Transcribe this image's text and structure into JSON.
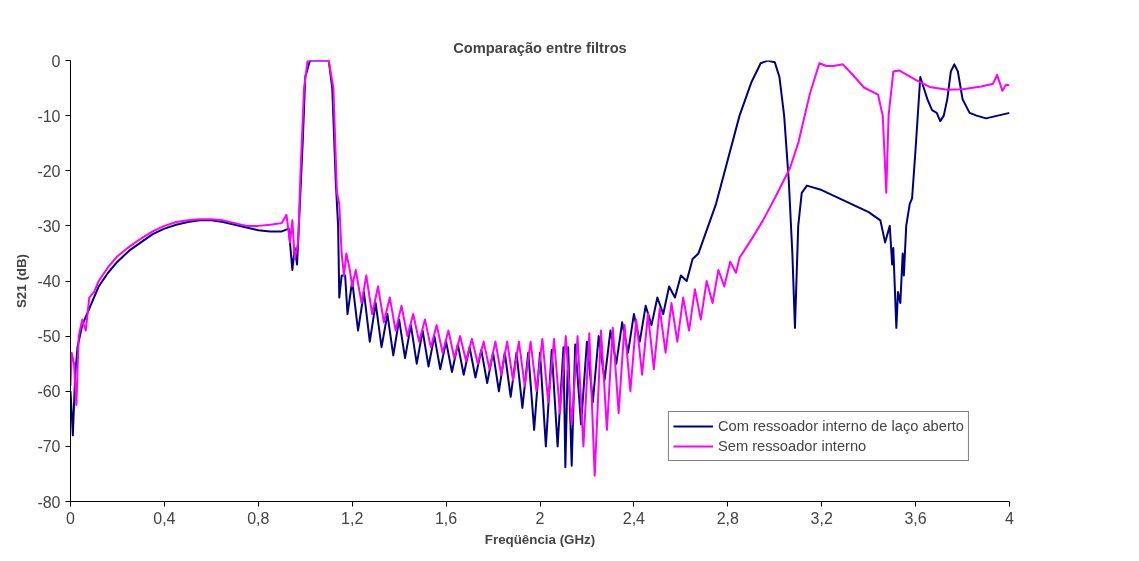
{
  "chart_data": {
    "type": "line",
    "title": "Comparação entre filtros",
    "xlabel": "Freqüência (GHz)",
    "ylabel": "S21 (dB)",
    "xlim": [
      0,
      4
    ],
    "ylim": [
      -80,
      0
    ],
    "xticks": [
      0,
      {
        "value": 0.4,
        "label": "0,4"
      },
      {
        "value": 0.8,
        "label": "0,8"
      },
      {
        "value": 1.2,
        "label": "1,2"
      },
      {
        "value": 1.6,
        "label": "1,6"
      },
      2,
      {
        "value": 2.4,
        "label": "2,4"
      },
      {
        "value": 2.8,
        "label": "2,8"
      },
      {
        "value": 3.2,
        "label": "3,2"
      },
      {
        "value": 3.6,
        "label": "3,6"
      },
      4
    ],
    "yticks": [
      -80,
      -70,
      -60,
      -50,
      -40,
      -30,
      -20,
      -10,
      0
    ],
    "grid": false,
    "legend": "bottom right",
    "marker": "none",
    "line_style": "solid",
    "series": [
      {
        "name": "Com ressoador interno de laço aberto",
        "color": "#000080",
        "x": [
          0,
          0.01,
          0.02,
          0.03,
          0.05,
          0.08,
          0.12,
          0.16,
          0.2,
          0.25,
          0.3,
          0.35,
          0.4,
          0.45,
          0.5,
          0.55,
          0.6,
          0.65,
          0.7,
          0.75,
          0.8,
          0.85,
          0.9,
          0.93,
          0.945,
          0.955,
          0.965,
          0.975,
          0.99,
          1.0,
          1.02,
          1.05,
          1.1,
          1.115,
          1.13,
          1.14,
          1.145,
          1.155,
          1.17,
          1.18,
          1.2,
          1.225,
          1.25,
          1.275,
          1.3,
          1.325,
          1.35,
          1.375,
          1.4,
          1.425,
          1.45,
          1.475,
          1.5,
          1.525,
          1.55,
          1.575,
          1.6,
          1.625,
          1.65,
          1.675,
          1.7,
          1.725,
          1.75,
          1.775,
          1.8,
          1.825,
          1.85,
          1.875,
          1.9,
          1.925,
          1.95,
          1.975,
          2.0,
          2.025,
          2.05,
          2.075,
          2.1,
          2.108,
          2.12,
          2.135,
          2.15,
          2.175,
          2.2,
          2.225,
          2.25,
          2.275,
          2.3,
          2.325,
          2.35,
          2.375,
          2.4,
          2.425,
          2.45,
          2.475,
          2.5,
          2.525,
          2.55,
          2.575,
          2.6,
          2.625,
          2.65,
          2.675,
          2.7,
          2.75,
          2.8,
          2.85,
          2.9,
          2.94,
          2.97,
          3.0,
          3.02,
          3.04,
          3.06,
          3.075,
          3.086,
          3.1,
          3.115,
          3.137,
          3.2,
          3.25,
          3.3,
          3.35,
          3.4,
          3.45,
          3.47,
          3.49,
          3.5,
          3.505,
          3.518,
          3.525,
          3.535,
          3.545,
          3.55,
          3.56,
          3.575,
          3.585,
          3.6,
          3.62,
          3.635,
          3.65,
          3.67,
          3.69,
          3.705,
          3.72,
          3.735,
          3.75,
          3.765,
          3.78,
          3.8,
          3.83,
          3.86,
          3.9,
          3.95,
          4.0
        ],
        "values": [
          -60,
          -68,
          -57,
          -52,
          -48,
          -45,
          -41,
          -38.5,
          -36.5,
          -34.5,
          -33,
          -31.5,
          -30.5,
          -29.8,
          -29.3,
          -29,
          -29,
          -29.3,
          -29.8,
          -30.3,
          -30.8,
          -31,
          -31,
          -30.5,
          -38,
          -34,
          -37,
          -28,
          -14,
          -3,
          0,
          0,
          0,
          -5,
          -22,
          -30,
          -43,
          -39,
          -39,
          -46,
          -40,
          -49,
          -42,
          -51,
          -44,
          -52,
          -46,
          -53.5,
          -47,
          -54,
          -48,
          -55,
          -49,
          -55.5,
          -50,
          -56,
          -51,
          -56.5,
          -51.5,
          -57,
          -52,
          -57.5,
          -52.5,
          -58.5,
          -53,
          -60,
          -53,
          -61,
          -53,
          -63,
          -53,
          -67,
          -53,
          -70,
          -52.5,
          -70,
          -52,
          -73.8,
          -52,
          -73.5,
          -51.5,
          -66,
          -51,
          -62,
          -50,
          -58,
          -49,
          -55,
          -47.5,
          -53,
          -46,
          -51,
          -44.5,
          -48,
          -43,
          -46,
          -41,
          -43,
          -39,
          -40,
          -36,
          -35,
          -32,
          -26,
          -18,
          -10,
          -4,
          -0.5,
          0,
          -0.3,
          -3,
          -10,
          -22,
          -35,
          -48.5,
          -30,
          -24,
          -22.7,
          -23.5,
          -24.5,
          -25.5,
          -26.5,
          -27.5,
          -29,
          -33,
          -30,
          -37,
          -34,
          -48.5,
          -42,
          -44,
          -35,
          -39,
          -30,
          -26,
          -25,
          -16,
          -3,
          -5,
          -7,
          -9,
          -9.5,
          -11,
          -10,
          -7,
          -2,
          -0.7,
          -2,
          -7,
          -9.5,
          -10,
          -10.5,
          -10,
          -9.5
        ]
      },
      {
        "name": "Sem ressoador interno",
        "color": "#ff00ff",
        "x": [
          0,
          0.005,
          0.015,
          0.025,
          0.035,
          0.05,
          0.065,
          0.08,
          0.1,
          0.12,
          0.16,
          0.2,
          0.25,
          0.3,
          0.35,
          0.4,
          0.45,
          0.5,
          0.55,
          0.6,
          0.65,
          0.7,
          0.75,
          0.8,
          0.85,
          0.9,
          0.92,
          0.935,
          0.945,
          0.955,
          0.97,
          0.98,
          0.995,
          1.01,
          1.1,
          1.12,
          1.135,
          1.145,
          1.155,
          1.165,
          1.175,
          1.19,
          1.2,
          1.215,
          1.24,
          1.26,
          1.285,
          1.31,
          1.335,
          1.36,
          1.385,
          1.41,
          1.435,
          1.46,
          1.485,
          1.51,
          1.535,
          1.56,
          1.585,
          1.61,
          1.635,
          1.66,
          1.685,
          1.71,
          1.735,
          1.76,
          1.785,
          1.81,
          1.835,
          1.86,
          1.885,
          1.91,
          1.935,
          1.96,
          1.985,
          2.01,
          2.035,
          2.06,
          2.085,
          2.11,
          2.135,
          2.16,
          2.185,
          2.21,
          2.233,
          2.26,
          2.285,
          2.31,
          2.335,
          2.36,
          2.385,
          2.41,
          2.435,
          2.46,
          2.485,
          2.51,
          2.535,
          2.56,
          2.585,
          2.61,
          2.635,
          2.66,
          2.685,
          2.71,
          2.735,
          2.76,
          2.785,
          2.81,
          2.835,
          2.85,
          2.9,
          2.95,
          3.0,
          3.065,
          3.1,
          3.15,
          3.19,
          3.22,
          3.25,
          3.29,
          3.33,
          3.38,
          3.44,
          3.46,
          3.475,
          3.485,
          3.505,
          3.53,
          3.6,
          3.66,
          3.735,
          3.8,
          3.88,
          3.93,
          3.947,
          3.97,
          3.985,
          4.0
        ],
        "values": [
          -59,
          -53,
          -55,
          -62.5,
          -50,
          -47,
          -49,
          -43,
          -42,
          -40,
          -37.5,
          -35.5,
          -33.8,
          -32.3,
          -31,
          -30,
          -29.3,
          -29,
          -28.8,
          -28.8,
          -29,
          -29.5,
          -30,
          -30,
          -29.8,
          -29.5,
          -28,
          -33,
          -29,
          -36,
          -33,
          -20,
          -5,
          0,
          0,
          -5,
          -24,
          -26,
          -35,
          -39,
          -35,
          -38,
          -41,
          -38,
          -44,
          -39,
          -46,
          -41,
          -47.5,
          -43,
          -49,
          -44.5,
          -50,
          -46,
          -51,
          -47,
          -52,
          -48,
          -53,
          -49,
          -54,
          -50,
          -54.5,
          -50.5,
          -55,
          -51,
          -56,
          -51,
          -57,
          -51,
          -58,
          -51,
          -59,
          -51,
          -60,
          -50.5,
          -62,
          -50.5,
          -64,
          -50,
          -66,
          -50,
          -70,
          -49.5,
          -75.3,
          -49,
          -67,
          -48.5,
          -64,
          -48,
          -60,
          -47,
          -57,
          -46,
          -56,
          -45,
          -53,
          -44,
          -51,
          -43,
          -49,
          -41.5,
          -47,
          -40,
          -44,
          -38,
          -41,
          -36.5,
          -38.5,
          -35.8,
          -32.5,
          -29,
          -25,
          -19.5,
          -15,
          -6,
          -0.5,
          -1,
          -1,
          -0.7,
          -2.5,
          -4.9,
          -6.2,
          -10,
          -24,
          -10,
          -2,
          -1.8,
          -3.5,
          -4.8,
          -5.3,
          -5.2,
          -4.7,
          -4.2,
          -2.6,
          -5.5,
          -4.4,
          -4.5
        ]
      }
    ]
  }
}
